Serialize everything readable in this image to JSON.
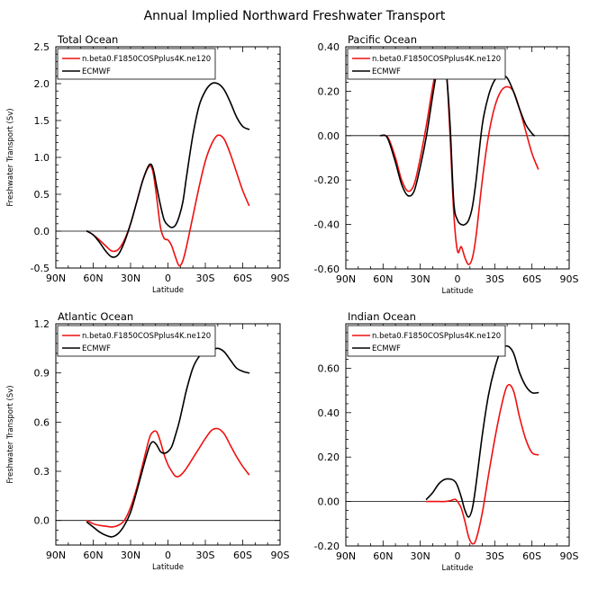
{
  "title": "Annual Implied Northward Freshwater Transport",
  "colors": {
    "model": "#ee1111",
    "obs": "#000000"
  },
  "chart_data": [
    {
      "type": "line",
      "title": "Total Ocean",
      "xlabel": "Latitude",
      "ylabel": "Freshwater Transport (Sv)",
      "xlim": [
        90,
        -90
      ],
      "ylim": [
        -0.5,
        2.5
      ],
      "xticks": [
        90,
        60,
        30,
        0,
        -30,
        -60,
        -90
      ],
      "xticklabels": [
        "90N",
        "60N",
        "30N",
        "0",
        "30S",
        "60S",
        "90S"
      ],
      "yticks": [
        -0.5,
        0.0,
        0.5,
        1.0,
        1.5,
        2.0,
        2.5
      ],
      "yticklabels": [
        "-0.5",
        "0.0",
        "0.5",
        "1.0",
        "1.5",
        "2.0",
        "2.5"
      ],
      "legend": "top-left",
      "zero_line": true,
      "series": [
        {
          "name": "n.beta0.F1850COSPplus4K.ne120",
          "color": "#ee1111",
          "x": [
            65,
            60,
            55,
            50,
            45,
            40,
            35,
            30,
            25,
            20,
            15,
            12,
            9,
            6,
            3,
            0,
            -3,
            -6,
            -9,
            -12,
            -15,
            -20,
            -25,
            -30,
            -35,
            -40,
            -45,
            -50,
            -55,
            -60,
            -65
          ],
          "y": [
            0.0,
            -0.05,
            -0.12,
            -0.2,
            -0.27,
            -0.25,
            -0.12,
            0.1,
            0.4,
            0.7,
            0.88,
            0.8,
            0.45,
            0.05,
            -0.1,
            -0.12,
            -0.2,
            -0.35,
            -0.47,
            -0.4,
            -0.2,
            0.2,
            0.6,
            0.95,
            1.18,
            1.3,
            1.25,
            1.05,
            0.8,
            0.55,
            0.35
          ]
        },
        {
          "name": "ECMWF",
          "color": "#000000",
          "x": [
            65,
            60,
            55,
            50,
            45,
            40,
            35,
            30,
            25,
            20,
            15,
            12,
            9,
            6,
            3,
            0,
            -3,
            -6,
            -9,
            -12,
            -15,
            -20,
            -25,
            -30,
            -35,
            -40,
            -45,
            -50,
            -55,
            -60,
            -65
          ],
          "y": [
            0.0,
            -0.05,
            -0.15,
            -0.27,
            -0.35,
            -0.32,
            -0.15,
            0.1,
            0.4,
            0.7,
            0.9,
            0.85,
            0.6,
            0.35,
            0.15,
            0.08,
            0.05,
            0.08,
            0.2,
            0.4,
            0.75,
            1.3,
            1.7,
            1.9,
            2.0,
            2.0,
            1.92,
            1.75,
            1.55,
            1.42,
            1.38
          ]
        }
      ]
    },
    {
      "type": "line",
      "title": "Pacific Ocean",
      "xlabel": "Latitude",
      "ylabel": "",
      "xlim": [
        90,
        -90
      ],
      "ylim": [
        -0.6,
        0.4
      ],
      "xticks": [
        90,
        60,
        30,
        0,
        -30,
        -60,
        -90
      ],
      "xticklabels": [
        "90N",
        "60N",
        "30N",
        "0",
        "30S",
        "60S",
        "90S"
      ],
      "yticks": [
        -0.6,
        -0.4,
        -0.2,
        0.0,
        0.2,
        0.4
      ],
      "yticklabels": [
        "-0.60",
        "-0.40",
        "-0.20",
        "0.00",
        "0.20",
        "0.40"
      ],
      "legend": "top-left",
      "zero_line": true,
      "series": [
        {
          "name": "n.beta0.F1850COSPplus4K.ne120",
          "color": "#ee1111",
          "x": [
            62,
            58,
            55,
            50,
            45,
            40,
            35,
            30,
            25,
            20,
            15,
            12,
            9,
            6,
            3,
            0,
            -3,
            -6,
            -9,
            -12,
            -15,
            -20,
            -25,
            -30,
            -35,
            -40,
            -45,
            -50,
            -55,
            -60,
            -65
          ],
          "y": [
            0.0,
            0.0,
            -0.02,
            -0.1,
            -0.2,
            -0.25,
            -0.22,
            -0.1,
            0.05,
            0.22,
            0.36,
            0.38,
            0.3,
            0.0,
            -0.35,
            -0.52,
            -0.5,
            -0.55,
            -0.58,
            -0.55,
            -0.45,
            -0.2,
            0.0,
            0.13,
            0.2,
            0.22,
            0.2,
            0.12,
            0.02,
            -0.08,
            -0.15
          ]
        },
        {
          "name": "ECMWF",
          "color": "#000000",
          "x": [
            62,
            58,
            55,
            50,
            45,
            40,
            35,
            30,
            25,
            20,
            15,
            12,
            9,
            6,
            3,
            0,
            -3,
            -6,
            -9,
            -12,
            -15,
            -20,
            -25,
            -30,
            -35,
            -40,
            -45,
            -50,
            -55,
            -60,
            -62
          ],
          "y": [
            0.0,
            0.0,
            -0.03,
            -0.12,
            -0.22,
            -0.27,
            -0.25,
            -0.14,
            0.0,
            0.18,
            0.34,
            0.36,
            0.28,
            0.05,
            -0.3,
            -0.38,
            -0.4,
            -0.4,
            -0.38,
            -0.32,
            -0.2,
            0.05,
            0.18,
            0.25,
            0.27,
            0.26,
            0.2,
            0.12,
            0.05,
            0.01,
            0.0
          ]
        }
      ]
    },
    {
      "type": "line",
      "title": "Atlantic Ocean",
      "xlabel": "Latitude",
      "ylabel": "Freshwater Transport (Sv)",
      "xlim": [
        90,
        -90
      ],
      "ylim": [
        -0.15,
        1.2
      ],
      "xticks": [
        90,
        60,
        30,
        0,
        -30,
        -60,
        -90
      ],
      "xticklabels": [
        "90N",
        "60N",
        "30N",
        "0",
        "30S",
        "60S",
        "90S"
      ],
      "yticks": [
        0.0,
        0.3,
        0.6,
        0.9,
        1.2
      ],
      "yticklabels": [
        "0.0",
        "0.3",
        "0.6",
        "0.9",
        "1.2"
      ],
      "legend": "top-left",
      "zero_line": true,
      "series": [
        {
          "name": "n.beta0.F1850COSPplus4K.ne120",
          "color": "#ee1111",
          "x": [
            65,
            60,
            55,
            50,
            45,
            40,
            35,
            30,
            25,
            20,
            15,
            12,
            9,
            6,
            3,
            0,
            -3,
            -6,
            -9,
            -12,
            -15,
            -20,
            -25,
            -30,
            -35,
            -40,
            -45,
            -50,
            -55,
            -60,
            -65
          ],
          "y": [
            0.0,
            -0.02,
            -0.03,
            -0.035,
            -0.04,
            -0.03,
            0.0,
            0.08,
            0.2,
            0.35,
            0.5,
            0.54,
            0.54,
            0.48,
            0.4,
            0.34,
            0.3,
            0.27,
            0.27,
            0.29,
            0.32,
            0.38,
            0.44,
            0.5,
            0.55,
            0.56,
            0.53,
            0.46,
            0.39,
            0.33,
            0.28
          ]
        },
        {
          "name": "ECMWF",
          "color": "#000000",
          "x": [
            65,
            60,
            55,
            50,
            45,
            40,
            35,
            30,
            25,
            20,
            15,
            12,
            9,
            6,
            3,
            0,
            -3,
            -6,
            -9,
            -12,
            -15,
            -20,
            -25,
            -30,
            -35,
            -40,
            -45,
            -50,
            -55,
            -60,
            -65
          ],
          "y": [
            -0.01,
            -0.04,
            -0.07,
            -0.09,
            -0.1,
            -0.08,
            -0.03,
            0.05,
            0.18,
            0.32,
            0.45,
            0.48,
            0.46,
            0.42,
            0.41,
            0.42,
            0.45,
            0.52,
            0.6,
            0.7,
            0.8,
            0.93,
            1.0,
            1.03,
            1.04,
            1.05,
            1.03,
            0.98,
            0.93,
            0.91,
            0.9
          ]
        }
      ]
    },
    {
      "type": "line",
      "title": "Indian Ocean",
      "xlabel": "Latitude",
      "ylabel": "",
      "xlim": [
        90,
        -90
      ],
      "ylim": [
        -0.2,
        0.8
      ],
      "xticks": [
        90,
        60,
        30,
        0,
        -30,
        -60,
        -90
      ],
      "xticklabels": [
        "90N",
        "60N",
        "30N",
        "0",
        "30S",
        "60S",
        "90S"
      ],
      "yticks": [
        -0.2,
        0.0,
        0.2,
        0.4,
        0.6
      ],
      "yticklabels": [
        "-0.20",
        "0.00",
        "0.20",
        "0.40",
        "0.60"
      ],
      "legend": "top-left",
      "zero_line": true,
      "series": [
        {
          "name": "n.beta0.F1850COSPplus4K.ne120",
          "color": "#ee1111",
          "x": [
            25,
            20,
            15,
            10,
            5,
            2,
            0,
            -3,
            -6,
            -9,
            -12,
            -15,
            -20,
            -25,
            -30,
            -35,
            -40,
            -45,
            -50,
            -55,
            -60,
            -65
          ],
          "y": [
            0.0,
            0.0,
            0.0,
            0.0,
            0.005,
            0.01,
            0.0,
            -0.03,
            -0.09,
            -0.16,
            -0.19,
            -0.17,
            -0.05,
            0.12,
            0.28,
            0.42,
            0.52,
            0.5,
            0.38,
            0.28,
            0.22,
            0.21
          ]
        },
        {
          "name": "ECMWF",
          "color": "#000000",
          "x": [
            25,
            20,
            15,
            10,
            5,
            2,
            0,
            -3,
            -6,
            -9,
            -12,
            -15,
            -20,
            -25,
            -30,
            -35,
            -40,
            -45,
            -50,
            -55,
            -60,
            -65
          ],
          "y": [
            0.01,
            0.04,
            0.08,
            0.1,
            0.1,
            0.09,
            0.07,
            0.02,
            -0.04,
            -0.07,
            -0.03,
            0.08,
            0.3,
            0.48,
            0.6,
            0.68,
            0.7,
            0.67,
            0.58,
            0.52,
            0.49,
            0.49
          ]
        }
      ]
    }
  ]
}
